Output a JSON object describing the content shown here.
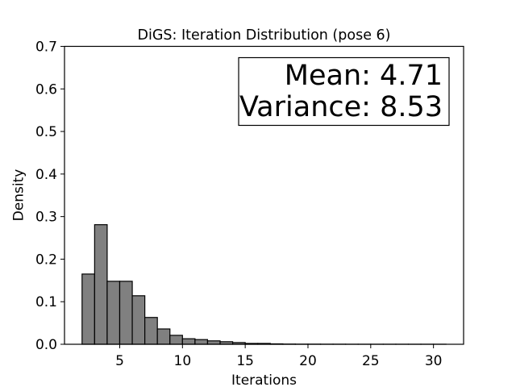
{
  "chart_data": {
    "type": "bar",
    "title": "DiGS: Iteration Distribution (pose 6)",
    "xlabel": "Iterations",
    "ylabel": "Density",
    "xlim": [
      0.6,
      32.4
    ],
    "ylim": [
      0,
      0.7
    ],
    "xticks": [
      5,
      10,
      15,
      20,
      25,
      30
    ],
    "yticks": [
      0.0,
      0.1,
      0.2,
      0.3,
      0.4,
      0.5,
      0.6,
      0.7
    ],
    "ytick_labels": [
      "0.0",
      "0.1",
      "0.2",
      "0.3",
      "0.4",
      "0.5",
      "0.6",
      "0.7"
    ],
    "bin_width": 1.0,
    "bins": [
      2,
      3,
      4,
      5,
      6,
      7,
      8,
      9,
      10,
      11,
      12,
      13,
      14,
      15,
      16,
      17,
      18,
      19,
      20,
      21,
      22,
      23,
      24,
      25,
      26,
      27,
      28,
      29,
      30
    ],
    "values": [
      0.165,
      0.281,
      0.148,
      0.148,
      0.114,
      0.063,
      0.036,
      0.021,
      0.013,
      0.011,
      0.008,
      0.006,
      0.004,
      0.002,
      0.002,
      0.001,
      0.0005,
      0.0003,
      0.0003,
      0.0002,
      0.0002,
      0.0001,
      0.0001,
      0.0001,
      0.0001,
      0.0001,
      0.0001,
      0.0001,
      0.0001
    ],
    "bar_color": "#808080",
    "edge_color": "#000000",
    "grid": false,
    "annotation": {
      "line1": "Mean: 4.71",
      "line2": "Variance: 8.53",
      "placement": "top-right"
    }
  }
}
